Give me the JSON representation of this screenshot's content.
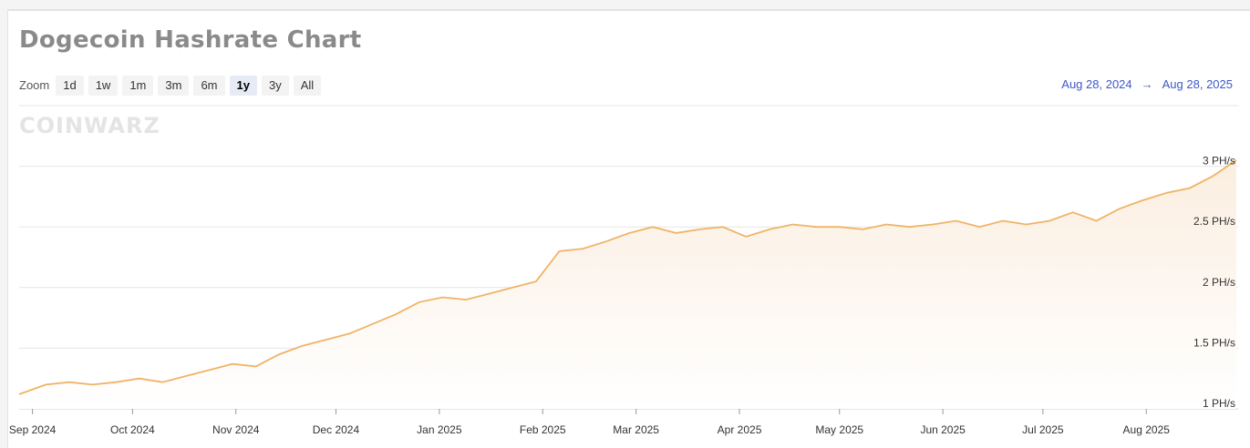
{
  "page": {
    "title": "Dogecoin Hashrate Chart",
    "watermark": "COINWARZ",
    "zoom": {
      "label": "Zoom",
      "buttons": [
        "1d",
        "1w",
        "1m",
        "3m",
        "6m",
        "1y",
        "3y",
        "All"
      ],
      "active": "1y"
    },
    "range": {
      "from": "Aug 28, 2024",
      "arrow": "→",
      "to": "Aug 28, 2025"
    }
  },
  "colors": {
    "line": "#f0b366",
    "fill_top": "#fbeee0",
    "fill_bottom": "#ffffff",
    "grid": "#e6e6e6"
  },
  "chart_data": {
    "type": "area",
    "title": "",
    "unit": "PH/s",
    "x_range": [
      "2024-08-28",
      "2025-08-28"
    ],
    "y_range": [
      1,
      3.5
    ],
    "y_ticks": [
      "1 PH/s",
      "1.5 PH/s",
      "2 PH/s",
      "2.5 PH/s",
      "3 PH/s"
    ],
    "y_tick_values": [
      1,
      1.5,
      2,
      2.5,
      3
    ],
    "x_ticks": [
      "Sep 2024",
      "Oct 2024",
      "Nov 2024",
      "Dec 2024",
      "Jan 2025",
      "Feb 2025",
      "Mar 2025",
      "Apr 2025",
      "May 2025",
      "Jun 2025",
      "Jul 2025",
      "Aug 2025"
    ],
    "x_tick_dates": [
      "2024-09-01",
      "2024-10-01",
      "2024-11-01",
      "2024-12-01",
      "2025-01-01",
      "2025-02-01",
      "2025-03-01",
      "2025-04-01",
      "2025-05-01",
      "2025-06-01",
      "2025-07-01",
      "2025-08-01"
    ],
    "grid": true,
    "series": [
      {
        "x": [
          "2024-08-28",
          "2024-09-05",
          "2024-09-12",
          "2024-09-19",
          "2024-09-26",
          "2024-10-03",
          "2024-10-10",
          "2024-10-17",
          "2024-10-24",
          "2024-10-31",
          "2024-11-07",
          "2024-11-14",
          "2024-11-21",
          "2024-11-28",
          "2024-12-05",
          "2024-12-12",
          "2024-12-19",
          "2024-12-26",
          "2025-01-02",
          "2025-01-09",
          "2025-01-16",
          "2025-01-23",
          "2025-01-30",
          "2025-02-06",
          "2025-02-13",
          "2025-02-20",
          "2025-02-27",
          "2025-03-06",
          "2025-03-13",
          "2025-03-20",
          "2025-03-27",
          "2025-04-03",
          "2025-04-10",
          "2025-04-17",
          "2025-04-24",
          "2025-05-01",
          "2025-05-08",
          "2025-05-15",
          "2025-05-22",
          "2025-05-29",
          "2025-06-05",
          "2025-06-12",
          "2025-06-19",
          "2025-06-26",
          "2025-07-03",
          "2025-07-10",
          "2025-07-17",
          "2025-07-24",
          "2025-07-31",
          "2025-08-07",
          "2025-08-14",
          "2025-08-21",
          "2025-08-28"
        ],
        "values": [
          1.12,
          1.2,
          1.22,
          1.2,
          1.22,
          1.25,
          1.22,
          1.27,
          1.32,
          1.37,
          1.35,
          1.45,
          1.52,
          1.57,
          1.62,
          1.7,
          1.78,
          1.88,
          1.92,
          1.9,
          1.95,
          2.0,
          2.05,
          2.3,
          2.32,
          2.38,
          2.45,
          2.5,
          2.45,
          2.48,
          2.5,
          2.42,
          2.48,
          2.52,
          2.5,
          2.5,
          2.48,
          2.52,
          2.5,
          2.52,
          2.55,
          2.5,
          2.55,
          2.52,
          2.55,
          2.62,
          2.55,
          2.65,
          2.72,
          2.78,
          2.82,
          2.92,
          3.05
        ]
      }
    ]
  }
}
